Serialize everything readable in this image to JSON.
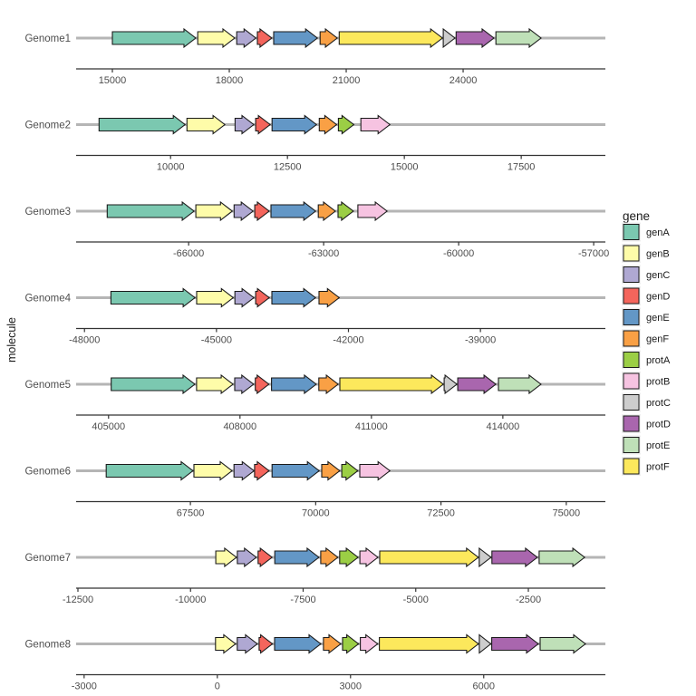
{
  "chart_data": {
    "type": "bar",
    "subtype": "gene-arrow-map",
    "title": "",
    "xlabel": "",
    "ylabel": "molecule",
    "grid": false,
    "legend_position": "right",
    "legend": {
      "title": "gene",
      "entries": [
        {
          "label": "genA",
          "color": "#7BC8B0"
        },
        {
          "label": "genB",
          "color": "#FEFCA9"
        },
        {
          "label": "genC",
          "color": "#AFA8D2"
        },
        {
          "label": "genD",
          "color": "#F4655C"
        },
        {
          "label": "genE",
          "color": "#6397C6"
        },
        {
          "label": "genF",
          "color": "#F9A045"
        },
        {
          "label": "protA",
          "color": "#9BCE45"
        },
        {
          "label": "protB",
          "color": "#F6C3E1"
        },
        {
          "label": "protC",
          "color": "#CDCDCD"
        },
        {
          "label": "protD",
          "color": "#A966AE"
        },
        {
          "label": "protE",
          "color": "#BFE0B8"
        },
        {
          "label": "protF",
          "color": "#FCE85C"
        }
      ]
    },
    "style": {
      "backbone_color": "#B5B5B5",
      "axis_color": "#333333",
      "tick_text_color": "#4D4D4D",
      "arrow_outline_color": "#1A1A1A",
      "legend_key_bg": "#EFEFEF"
    },
    "genomes": [
      {
        "label": "Genome1",
        "xlim": [
          14070,
          27650
        ],
        "ticks": [
          15000,
          18000,
          21000,
          24000
        ],
        "genes": [
          {
            "gene": "genA",
            "start": 15000,
            "end": 17140
          },
          {
            "gene": "genB",
            "start": 17190,
            "end": 18140
          },
          {
            "gene": "genC",
            "start": 18190,
            "end": 18680
          },
          {
            "gene": "genD",
            "start": 18720,
            "end": 19090
          },
          {
            "gene": "genE",
            "start": 19140,
            "end": 20260
          },
          {
            "gene": "genF",
            "start": 20330,
            "end": 20770
          },
          {
            "gene": "protF",
            "start": 20820,
            "end": 23470
          },
          {
            "gene": "protC",
            "start": 23490,
            "end": 23790
          },
          {
            "gene": "protD",
            "start": 23820,
            "end": 24790
          },
          {
            "gene": "protE",
            "start": 24840,
            "end": 26000
          }
        ]
      },
      {
        "label": "Genome2",
        "xlim": [
          7980,
          19300
        ],
        "ticks": [
          10000,
          12500,
          15000,
          17500
        ],
        "genes": [
          {
            "gene": "genA",
            "start": 8470,
            "end": 10310
          },
          {
            "gene": "genB",
            "start": 10350,
            "end": 11160
          },
          {
            "gene": "genC",
            "start": 11380,
            "end": 11780
          },
          {
            "gene": "genD",
            "start": 11820,
            "end": 12130
          },
          {
            "gene": "genE",
            "start": 12170,
            "end": 13120
          },
          {
            "gene": "genF",
            "start": 13180,
            "end": 13550
          },
          {
            "gene": "protA",
            "start": 13590,
            "end": 13920
          },
          {
            "gene": "protB",
            "start": 14070,
            "end": 14690
          }
        ]
      },
      {
        "label": "Genome3",
        "xlim": [
          -68500,
          -56740
        ],
        "ticks": [
          -66000,
          -63000,
          -60000,
          -57000
        ],
        "genes": [
          {
            "gene": "genA",
            "start": -67810,
            "end": -65880
          },
          {
            "gene": "genB",
            "start": -65840,
            "end": -65030
          },
          {
            "gene": "genC",
            "start": -64990,
            "end": -64570
          },
          {
            "gene": "genD",
            "start": -64530,
            "end": -64210
          },
          {
            "gene": "genE",
            "start": -64170,
            "end": -63180
          },
          {
            "gene": "genF",
            "start": -63120,
            "end": -62740
          },
          {
            "gene": "protA",
            "start": -62680,
            "end": -62340
          },
          {
            "gene": "protB",
            "start": -62240,
            "end": -61590
          }
        ]
      },
      {
        "label": "Genome4",
        "xlim": [
          -48190,
          -36160
        ],
        "ticks": [
          -48000,
          -45000,
          -42000,
          -39000
        ],
        "genes": [
          {
            "gene": "genA",
            "start": -47400,
            "end": -45490
          },
          {
            "gene": "genB",
            "start": -45450,
            "end": -44620
          },
          {
            "gene": "genC",
            "start": -44580,
            "end": -44150
          },
          {
            "gene": "genD",
            "start": -44110,
            "end": -43800
          },
          {
            "gene": "genE",
            "start": -43740,
            "end": -42750
          },
          {
            "gene": "genF",
            "start": -42670,
            "end": -42210
          }
        ]
      },
      {
        "label": "Genome5",
        "xlim": [
          404260,
          416340
        ],
        "ticks": [
          405000,
          408000,
          411000,
          414000
        ],
        "genes": [
          {
            "gene": "genA",
            "start": 405060,
            "end": 406970
          },
          {
            "gene": "genB",
            "start": 407010,
            "end": 407840
          },
          {
            "gene": "genC",
            "start": 407880,
            "end": 408310
          },
          {
            "gene": "genD",
            "start": 408350,
            "end": 408660
          },
          {
            "gene": "genE",
            "start": 408720,
            "end": 409740
          },
          {
            "gene": "genF",
            "start": 409800,
            "end": 410240
          },
          {
            "gene": "protF",
            "start": 410280,
            "end": 412640
          },
          {
            "gene": "protC",
            "start": 412660,
            "end": 412950
          },
          {
            "gene": "protD",
            "start": 412970,
            "end": 413840
          },
          {
            "gene": "protE",
            "start": 413900,
            "end": 414870
          }
        ]
      },
      {
        "label": "Genome6",
        "xlim": [
          65220,
          75780
        ],
        "ticks": [
          67500,
          70000,
          72500,
          75000
        ],
        "genes": [
          {
            "gene": "genA",
            "start": 65820,
            "end": 67550
          },
          {
            "gene": "genB",
            "start": 67570,
            "end": 68330
          },
          {
            "gene": "genC",
            "start": 68370,
            "end": 68770
          },
          {
            "gene": "genD",
            "start": 68780,
            "end": 69070
          },
          {
            "gene": "genE",
            "start": 69130,
            "end": 70070
          },
          {
            "gene": "genF",
            "start": 70120,
            "end": 70480
          },
          {
            "gene": "protA",
            "start": 70520,
            "end": 70840
          },
          {
            "gene": "protB",
            "start": 70880,
            "end": 71480
          }
        ]
      },
      {
        "label": "Genome7",
        "xlim": [
          -12540,
          -790
        ],
        "ticks": [
          -12500,
          -10000,
          -7500,
          -5000,
          -2500
        ],
        "genes": [
          {
            "gene": "genB",
            "start": -9440,
            "end": -8980
          },
          {
            "gene": "genC",
            "start": -8960,
            "end": -8540
          },
          {
            "gene": "genD",
            "start": -8500,
            "end": -8190
          },
          {
            "gene": "genE",
            "start": -8130,
            "end": -7150
          },
          {
            "gene": "genF",
            "start": -7110,
            "end": -6730
          },
          {
            "gene": "protA",
            "start": -6690,
            "end": -6280
          },
          {
            "gene": "protB",
            "start": -6240,
            "end": -5840
          },
          {
            "gene": "protF",
            "start": -5800,
            "end": -3610
          },
          {
            "gene": "protC",
            "start": -3590,
            "end": -3330
          },
          {
            "gene": "protD",
            "start": -3310,
            "end": -2300
          },
          {
            "gene": "protE",
            "start": -2260,
            "end": -1250
          }
        ]
      },
      {
        "label": "Genome8",
        "xlim": [
          -3180,
          8740
        ],
        "ticks": [
          -3000,
          0,
          3000,
          6000
        ],
        "genes": [
          {
            "gene": "genB",
            "start": -40,
            "end": 410
          },
          {
            "gene": "genC",
            "start": 450,
            "end": 900
          },
          {
            "gene": "genD",
            "start": 940,
            "end": 1240
          },
          {
            "gene": "genE",
            "start": 1290,
            "end": 2330
          },
          {
            "gene": "genF",
            "start": 2390,
            "end": 2780
          },
          {
            "gene": "protA",
            "start": 2820,
            "end": 3180
          },
          {
            "gene": "protB",
            "start": 3220,
            "end": 3610
          },
          {
            "gene": "protF",
            "start": 3650,
            "end": 5880
          },
          {
            "gene": "protC",
            "start": 5900,
            "end": 6160
          },
          {
            "gene": "protD",
            "start": 6180,
            "end": 7230
          },
          {
            "gene": "protE",
            "start": 7270,
            "end": 8290
          }
        ]
      }
    ]
  }
}
